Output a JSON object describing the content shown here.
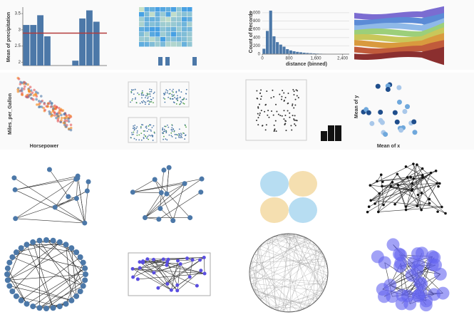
{
  "gallery": {
    "precipitation": {
      "type": "bar",
      "y_label": "Mean of precipitation",
      "categories": [
        null,
        null,
        null,
        null,
        null,
        null,
        null,
        null,
        null,
        null,
        null,
        null
      ],
      "values": [
        3.15,
        3.15,
        3.45,
        2.8,
        null,
        null,
        null,
        2.05,
        3.35,
        3.6,
        3.25,
        null
      ],
      "color": "#4c78a8",
      "rule": 2.9,
      "rule_color": "#b33b3b",
      "ylim": [
        1.9,
        3.7
      ],
      "yticks": [
        2.0,
        2.5,
        3.0,
        3.5
      ]
    },
    "histogram": {
      "type": "histogram",
      "y_label": "Count of Records",
      "x_label": "distance (binned)",
      "bins": [
        0,
        100,
        200,
        300,
        400,
        500,
        600,
        700,
        800,
        900,
        1000,
        1100,
        1200,
        1300,
        1400,
        1500,
        1600,
        1700,
        1800,
        1900,
        2000,
        2100,
        2200,
        2300,
        2400,
        2500
      ],
      "values": [
        130,
        560,
        1050,
        430,
        290,
        230,
        180,
        120,
        90,
        70,
        55,
        45,
        35,
        28,
        22,
        18,
        14,
        11,
        9,
        7,
        6,
        5,
        4,
        3,
        2
      ],
      "color": "#4c78a8",
      "ylim": [
        0,
        1100
      ],
      "yticks": [
        0,
        200,
        400,
        600,
        800,
        {
          "value": 1000,
          "label": "1,000"
        }
      ],
      "xlim": [
        0,
        2600
      ],
      "xticks": [
        0,
        800,
        {
          "value": 1600,
          "label": "1,600"
        },
        {
          "value": 2400,
          "label": "2,400"
        }
      ]
    },
    "scatter": {
      "y_label": "Miles_per_Gallon",
      "x_label": "Horsepower"
    },
    "means": {
      "y_label": "Mean of y",
      "x_label": "Mean of x"
    }
  }
}
